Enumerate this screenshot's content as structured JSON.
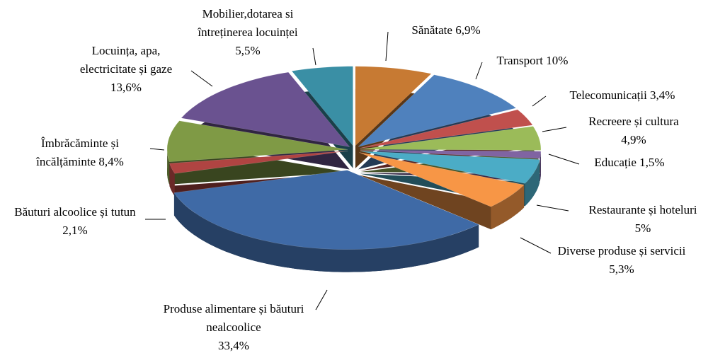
{
  "chart_data": {
    "type": "pie3d",
    "categories": [
      "Sănătate",
      "Transport",
      "Telecomunicații",
      "Recreere și cultura",
      "Educație",
      "Restaurante și hoteluri",
      "Diverse produse și servicii",
      "Produse alimentare și băuturi nealcoolice",
      "Băuturi alcoolice și tutun",
      "Îmbrăcăminte și încălțăminte",
      "Locuința, apa, electricitate și gaze",
      "Mobilier,dotarea si întreținerea locuinței"
    ],
    "values": [
      6.9,
      10,
      3.4,
      4.9,
      1.5,
      5,
      5.3,
      33.4,
      2.1,
      8.4,
      13.6,
      5.5
    ],
    "value_labels": [
      "6,9%",
      "10%",
      "3,4%",
      "4,9%",
      "1,5%",
      "5%",
      "5,3%",
      "33,4%",
      "2,1%",
      "8,4%",
      "13,6%",
      "5,5%"
    ],
    "colors": [
      "#c77a33",
      "#4f81bd",
      "#c0504d",
      "#9bbb59",
      "#8064a2",
      "#4bacc6",
      "#f79646",
      "#3f6aa6",
      "#b04442",
      "#7f9a45",
      "#6a5290",
      "#3a8fa5"
    ]
  }
}
